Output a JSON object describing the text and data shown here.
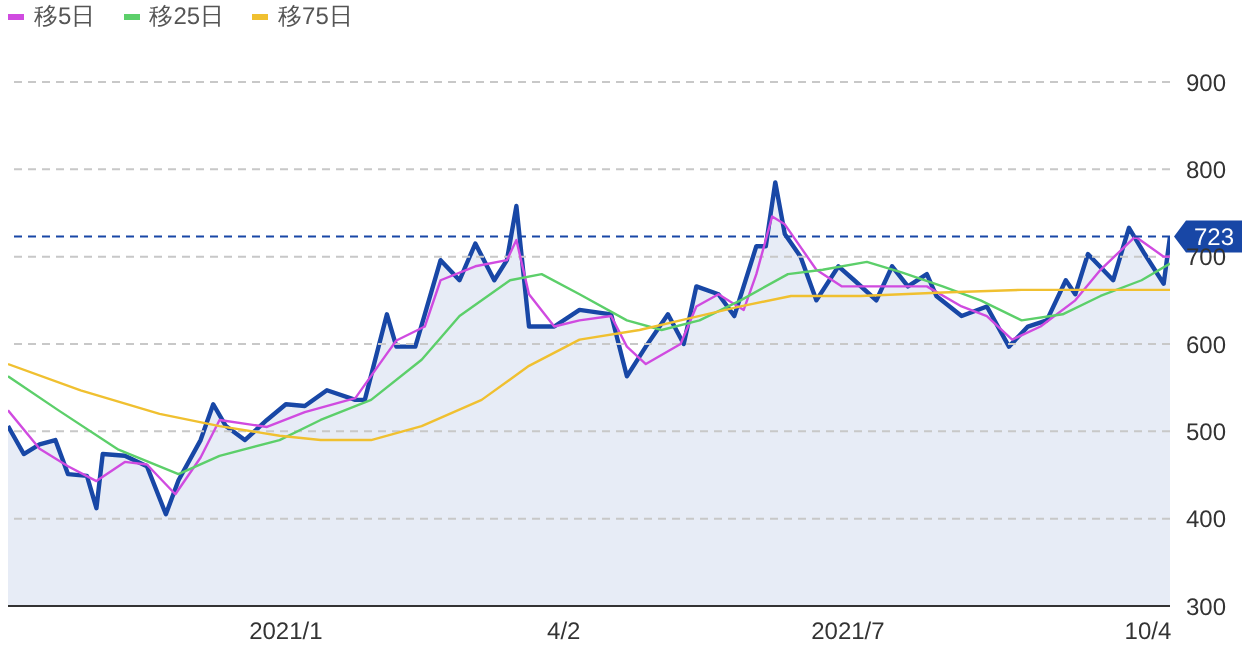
{
  "chart_data": {
    "type": "area",
    "xlim": [
      "2020-10-08",
      "2021-10-11"
    ],
    "xticks": [
      {
        "value": "2021-01-04",
        "label": "2021/1"
      },
      {
        "value": "2021-04-02",
        "label": "4/2"
      },
      {
        "value": "2021-07-01",
        "label": "2021/7"
      },
      {
        "value": "2021-10-04",
        "label": "10/4"
      }
    ],
    "ylim": [
      300,
      900
    ],
    "yticks": [
      300,
      400,
      500,
      600,
      700,
      800,
      900
    ],
    "grid": "y",
    "legend": "top left",
    "marker": "none",
    "ref_lines": [
      {
        "axis": "y",
        "value": 723,
        "label": "723",
        "color": "#1847a6",
        "line_style": "dashed"
      }
    ],
    "series": [
      {
        "color": "#1847a6",
        "x": [
          "2020-10-08",
          "2020-10-13",
          "2020-10-18",
          "2020-10-23",
          "2020-10-27",
          "2020-11-02",
          "2020-11-05",
          "2020-11-07",
          "2020-11-14",
          "2020-11-21",
          "2020-11-27",
          "2020-12-01",
          "2020-12-08",
          "2020-12-12",
          "2020-12-16",
          "2020-12-22",
          "2020-12-29",
          "2021-01-04",
          "2021-01-10",
          "2021-01-17",
          "2021-01-26",
          "2021-01-29",
          "2021-02-05",
          "2021-02-08",
          "2021-02-14",
          "2021-02-17",
          "2021-02-22",
          "2021-02-28",
          "2021-03-05",
          "2021-03-11",
          "2021-03-15",
          "2021-03-18",
          "2021-03-22",
          "2021-03-30",
          "2021-04-07",
          "2021-04-17",
          "2021-04-22",
          "2021-04-28",
          "2021-05-05",
          "2021-05-10",
          "2021-05-14",
          "2021-05-21",
          "2021-05-26",
          "2021-06-02",
          "2021-06-05",
          "2021-06-08",
          "2021-06-11",
          "2021-06-16",
          "2021-06-21",
          "2021-06-28",
          "2021-07-03",
          "2021-07-10",
          "2021-07-15",
          "2021-07-20",
          "2021-07-26",
          "2021-07-29",
          "2021-08-06",
          "2021-08-14",
          "2021-08-21",
          "2021-08-27",
          "2021-09-02",
          "2021-09-08",
          "2021-09-11",
          "2021-09-15",
          "2021-09-23",
          "2021-09-28",
          "2021-10-03",
          "2021-10-09",
          "2021-10-11"
        ],
        "values": [
          506,
          474,
          485,
          490,
          451,
          449,
          412,
          474,
          472,
          460,
          405,
          444,
          490,
          531,
          506,
          490,
          513,
          531,
          529,
          547,
          536,
          536,
          634,
          597,
          597,
          634,
          696,
          673,
          715,
          673,
          696,
          758,
          620,
          620,
          639,
          634,
          563,
          597,
          634,
          600,
          666,
          657,
          632,
          712,
          712,
          785,
          726,
          700,
          650,
          689,
          673,
          650,
          689,
          666,
          680,
          655,
          632,
          643,
          597,
          620,
          627,
          673,
          657,
          703,
          673,
          733,
          703,
          669,
          723
        ]
      },
      {
        "name": "移5日",
        "type": "line",
        "color": "#d04be0",
        "x": [
          "2020-10-08",
          "2020-10-18",
          "2020-10-27",
          "2020-11-05",
          "2020-11-14",
          "2020-11-21",
          "2020-11-30",
          "2020-12-08",
          "2020-12-14",
          "2020-12-29",
          "2021-01-10",
          "2021-01-26",
          "2021-02-05",
          "2021-02-08",
          "2021-02-17",
          "2021-02-22",
          "2021-03-05",
          "2021-03-15",
          "2021-03-18",
          "2021-03-22",
          "2021-03-30",
          "2021-04-07",
          "2021-04-17",
          "2021-04-22",
          "2021-04-28",
          "2021-05-09",
          "2021-05-14",
          "2021-05-21",
          "2021-05-29",
          "2021-06-02",
          "2021-06-07",
          "2021-06-11",
          "2021-06-21",
          "2021-06-29",
          "2021-07-12",
          "2021-07-26",
          "2021-08-06",
          "2021-08-14",
          "2021-08-22",
          "2021-08-31",
          "2021-09-11",
          "2021-09-19",
          "2021-09-30",
          "2021-10-09",
          "2021-10-11"
        ],
        "values": [
          524,
          480,
          460,
          443,
          465,
          462,
          428,
          470,
          513,
          505,
          522,
          538,
          589,
          604,
          620,
          673,
          689,
          696,
          719,
          657,
          620,
          627,
          632,
          597,
          577,
          600,
          643,
          657,
          639,
          680,
          746,
          737,
          685,
          666,
          666,
          666,
          643,
          632,
          605,
          620,
          650,
          685,
          723,
          700,
          700
        ]
      },
      {
        "name": "移25日",
        "type": "line",
        "color": "#5ccf6a",
        "x": [
          "2020-10-08",
          "2020-10-24",
          "2020-11-12",
          "2020-12-01",
          "2020-12-14",
          "2021-01-02",
          "2021-01-15",
          "2021-01-31",
          "2021-02-16",
          "2021-02-28",
          "2021-03-16",
          "2021-03-26",
          "2021-04-07",
          "2021-04-22",
          "2021-05-03",
          "2021-05-15",
          "2021-05-28",
          "2021-06-12",
          "2021-06-23",
          "2021-07-07",
          "2021-07-18",
          "2021-07-31",
          "2021-08-12",
          "2021-08-25",
          "2021-09-07",
          "2021-09-19",
          "2021-10-02",
          "2021-10-11"
        ],
        "values": [
          563,
          524,
          479,
          451,
          472,
          490,
          513,
          536,
          582,
          632,
          673,
          680,
          657,
          627,
          616,
          627,
          650,
          680,
          685,
          694,
          682,
          666,
          650,
          627,
          634,
          655,
          673,
          692
        ]
      },
      {
        "name": "移75日",
        "type": "line",
        "color": "#f0c030",
        "x": [
          "2020-10-08",
          "2020-10-31",
          "2020-11-25",
          "2020-12-14",
          "2021-01-02",
          "2021-01-15",
          "2021-01-31",
          "2021-02-16",
          "2021-03-07",
          "2021-03-22",
          "2021-04-07",
          "2021-04-26",
          "2021-05-09",
          "2021-05-28",
          "2021-06-13",
          "2021-07-05",
          "2021-07-31",
          "2021-08-25",
          "2021-09-19",
          "2021-10-11"
        ],
        "values": [
          577,
          547,
          520,
          506,
          495,
          490,
          490,
          506,
          536,
          575,
          605,
          616,
          627,
          643,
          655,
          655,
          659,
          662,
          662,
          662
        ]
      }
    ]
  }
}
